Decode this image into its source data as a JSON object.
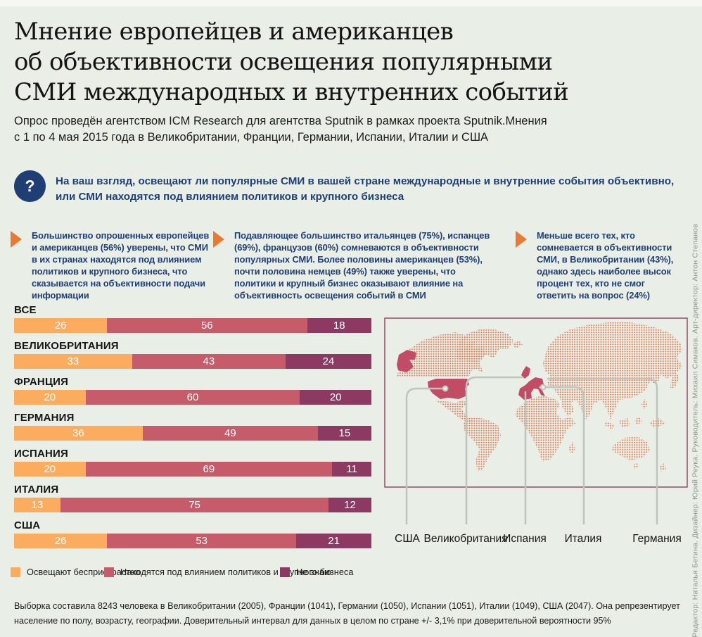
{
  "colors": {
    "page_bg": "#E9EEE7",
    "navy": "#1E3E74",
    "arrow_orange": "#E87A32",
    "map_dot": "#E8784A",
    "map_highlight": "#C24B66",
    "map_border": "#9B4A6B",
    "callout_grey": "#C0C4BE"
  },
  "header": {
    "title_lines": [
      "Мнение европейцев и американцев",
      "об объективности освещения популярными",
      "СМИ международных и внутренних событий"
    ],
    "subtitle_lines": [
      "Опрос проведён агентством ICM Research для агентства Sputnik в рамках проекта Sputnik.Мнения",
      "с 1 по 4 мая 2015 года в Великобритании, Франции, Германии, Испании, Италии и США"
    ]
  },
  "question": {
    "icon": "?",
    "text": "На ваш взгляд, освещают ли популярные СМИ в вашей стране международные и внутренние события объективно, или СМИ находятся под влиянием политиков и крупного бизнеса"
  },
  "bullets": [
    {
      "text": "Большинство опрошенных европейцев и американцев (56%) уверены, что СМИ в их странах находятся под влиянием политиков и крупного бизнеса, что сказывается на объективности подачи информации"
    },
    {
      "text": "Подавляющее большинство итальянцев (75%), испанцев (69%), французов (60%) сомневаются в объективности популярных СМИ. Более половины американцев (53%), почти половина немцев (49%) также уверены, что политики и крупный бизнес оказывают влияние на объективность освещения событий в СМИ"
    },
    {
      "text": "Меньше всего тех, кто сомневается в объективности СМИ, в Великобритании (43%), однако здесь наиболее высок процент тех, кто не смог ответить на вопрос (24%)"
    }
  ],
  "chart_data": {
    "type": "bar",
    "stacked": true,
    "orientation": "horizontal",
    "unit": "%",
    "xlim": [
      0,
      100
    ],
    "categories": [
      "ВСЕ",
      "ВЕЛИКОБРИТАНИЯ",
      "ФРАНЦИЯ",
      "ГЕРМАНИЯ",
      "ИСПАНИЯ",
      "ИТАЛИЯ",
      "США"
    ],
    "series": [
      {
        "name": "Освещают беспристрастно",
        "color": "#FBAC5F",
        "values": [
          26,
          33,
          20,
          36,
          20,
          13,
          26
        ]
      },
      {
        "name": "Находятся под влиянием политиков и крупного бизнеса",
        "color": "#C65B69",
        "values": [
          56,
          43,
          60,
          49,
          69,
          75,
          53
        ]
      },
      {
        "name": "Не знаю",
        "color": "#8C3A62",
        "values": [
          18,
          24,
          20,
          15,
          11,
          12,
          21
        ]
      }
    ],
    "legend_position": "bottom",
    "grid": false
  },
  "map": {
    "labels": [
      "США",
      "Великобритания",
      "Испания",
      "Италия",
      "Германия"
    ],
    "highlighted_countries": [
      "США",
      "Великобритания",
      "Франция",
      "Испания",
      "Италия",
      "Германия"
    ]
  },
  "footer": {
    "text": "Выборка составила 8243 человека в Великобритании (2005), Франции (1041), Германии (1050), Испании (1051), Италии (1049), США (2047). Она репрезентирует население по полу, возрасту, географии. Доверительный интервал для данных в целом по стране +/- 3,1% при доверительной вероятности 95%"
  },
  "credits": {
    "text": "Редактор: Наталья Бетина. Дизайнер: Юрий Реука. Руководитель: Михаил Симаков. Арт-директор: Антон Степанов"
  }
}
